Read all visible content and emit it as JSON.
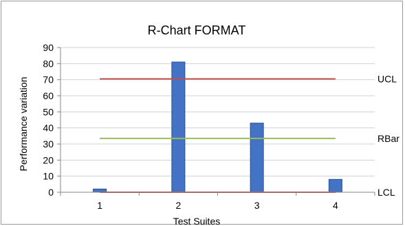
{
  "chart_data": {
    "type": "bar",
    "title": "R-Chart FORMAT",
    "xlabel": "Test Suites",
    "ylabel": "Performance variation",
    "categories": [
      "1",
      "2",
      "3",
      "4"
    ],
    "values": [
      2,
      81,
      43,
      8
    ],
    "ylim": [
      0,
      90
    ],
    "yticks": [
      0,
      10,
      20,
      30,
      40,
      50,
      60,
      70,
      80,
      90
    ],
    "grid": true,
    "bar_color": "#4472c4",
    "bar_edge_color": "#2b4f8c",
    "reference_lines": [
      {
        "name": "UCL",
        "value": 70.5,
        "color": "#c0504d"
      },
      {
        "name": "RBar",
        "value": 33.5,
        "color": "#9bbb59"
      },
      {
        "name": "LCL",
        "value": 0,
        "color": "#c0504d"
      }
    ]
  }
}
